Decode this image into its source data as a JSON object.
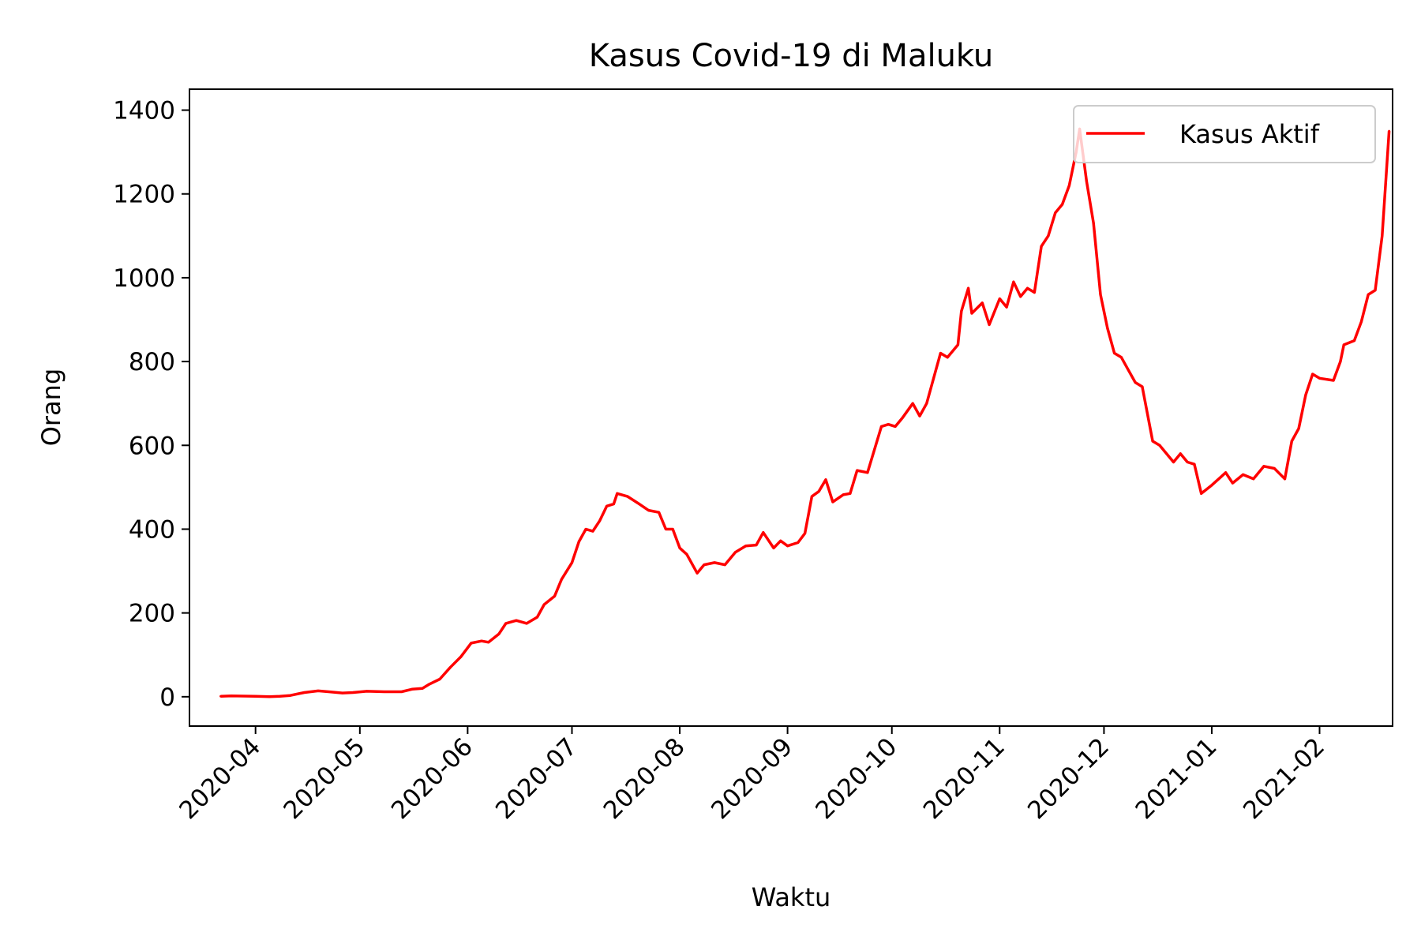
{
  "chart_data": {
    "type": "line",
    "title": "Kasus Covid-19 di Maluku",
    "xlabel": "Waktu",
    "ylabel": "Orang",
    "x_axis": "date",
    "xlim": [
      "2020-03-13",
      "2021-02-22"
    ],
    "ylim": [
      -70,
      1450
    ],
    "xticks": [
      "2020-04-01",
      "2020-05-01",
      "2020-06-01",
      "2020-07-01",
      "2020-08-01",
      "2020-09-01",
      "2020-10-01",
      "2020-11-01",
      "2020-12-01",
      "2021-01-01",
      "2021-02-01"
    ],
    "xtick_labels": [
      "2020-04",
      "2020-05",
      "2020-06",
      "2020-07",
      "2020-08",
      "2020-09",
      "2020-10",
      "2020-11",
      "2020-12",
      "2021-01",
      "2021-02"
    ],
    "yticks": [
      0,
      200,
      400,
      600,
      800,
      1000,
      1200,
      1400
    ],
    "grid": false,
    "legend_position": "upper right",
    "series": [
      {
        "name": "Kasus Aktif",
        "color": "#ff0000",
        "points": [
          [
            "2020-03-22",
            1
          ],
          [
            "2020-03-25",
            2
          ],
          [
            "2020-04-01",
            1
          ],
          [
            "2020-04-05",
            0
          ],
          [
            "2020-04-08",
            1
          ],
          [
            "2020-04-11",
            3
          ],
          [
            "2020-04-15",
            10
          ],
          [
            "2020-04-19",
            14
          ],
          [
            "2020-04-22",
            12
          ],
          [
            "2020-04-26",
            9
          ],
          [
            "2020-04-29",
            10
          ],
          [
            "2020-05-03",
            13
          ],
          [
            "2020-05-08",
            12
          ],
          [
            "2020-05-13",
            12
          ],
          [
            "2020-05-16",
            18
          ],
          [
            "2020-05-19",
            20
          ],
          [
            "2020-05-21",
            30
          ],
          [
            "2020-05-24",
            42
          ],
          [
            "2020-05-27",
            70
          ],
          [
            "2020-05-30",
            95
          ],
          [
            "2020-06-02",
            128
          ],
          [
            "2020-06-05",
            133
          ],
          [
            "2020-06-07",
            130
          ],
          [
            "2020-06-10",
            150
          ],
          [
            "2020-06-12",
            175
          ],
          [
            "2020-06-15",
            182
          ],
          [
            "2020-06-18",
            175
          ],
          [
            "2020-06-21",
            190
          ],
          [
            "2020-06-23",
            220
          ],
          [
            "2020-06-26",
            240
          ],
          [
            "2020-06-28",
            280
          ],
          [
            "2020-07-01",
            320
          ],
          [
            "2020-07-03",
            370
          ],
          [
            "2020-07-05",
            400
          ],
          [
            "2020-07-07",
            395
          ],
          [
            "2020-07-09",
            420
          ],
          [
            "2020-07-11",
            455
          ],
          [
            "2020-07-13",
            460
          ],
          [
            "2020-07-14",
            485
          ],
          [
            "2020-07-17",
            478
          ],
          [
            "2020-07-20",
            462
          ],
          [
            "2020-07-23",
            445
          ],
          [
            "2020-07-26",
            440
          ],
          [
            "2020-07-28",
            400
          ],
          [
            "2020-07-30",
            400
          ],
          [
            "2020-08-01",
            355
          ],
          [
            "2020-08-03",
            340
          ],
          [
            "2020-08-06",
            295
          ],
          [
            "2020-08-08",
            315
          ],
          [
            "2020-08-11",
            320
          ],
          [
            "2020-08-14",
            315
          ],
          [
            "2020-08-17",
            345
          ],
          [
            "2020-08-20",
            360
          ],
          [
            "2020-08-23",
            362
          ],
          [
            "2020-08-25",
            392
          ],
          [
            "2020-08-28",
            355
          ],
          [
            "2020-08-30",
            372
          ],
          [
            "2020-09-01",
            360
          ],
          [
            "2020-09-04",
            368
          ],
          [
            "2020-09-06",
            390
          ],
          [
            "2020-09-08",
            478
          ],
          [
            "2020-09-10",
            490
          ],
          [
            "2020-09-12",
            518
          ],
          [
            "2020-09-14",
            465
          ],
          [
            "2020-09-17",
            482
          ],
          [
            "2020-09-19",
            485
          ],
          [
            "2020-09-21",
            540
          ],
          [
            "2020-09-24",
            535
          ],
          [
            "2020-09-26",
            590
          ],
          [
            "2020-09-28",
            645
          ],
          [
            "2020-09-30",
            650
          ],
          [
            "2020-10-02",
            645
          ],
          [
            "2020-10-04",
            665
          ],
          [
            "2020-10-07",
            700
          ],
          [
            "2020-10-09",
            670
          ],
          [
            "2020-10-11",
            700
          ],
          [
            "2020-10-13",
            760
          ],
          [
            "2020-10-15",
            820
          ],
          [
            "2020-10-17",
            810
          ],
          [
            "2020-10-20",
            840
          ],
          [
            "2020-10-21",
            920
          ],
          [
            "2020-10-23",
            975
          ],
          [
            "2020-10-24",
            915
          ],
          [
            "2020-10-27",
            940
          ],
          [
            "2020-10-29",
            888
          ],
          [
            "2020-11-01",
            950
          ],
          [
            "2020-11-03",
            930
          ],
          [
            "2020-11-05",
            990
          ],
          [
            "2020-11-07",
            955
          ],
          [
            "2020-11-09",
            975
          ],
          [
            "2020-11-11",
            965
          ],
          [
            "2020-11-13",
            1075
          ],
          [
            "2020-11-15",
            1100
          ],
          [
            "2020-11-17",
            1155
          ],
          [
            "2020-11-19",
            1175
          ],
          [
            "2020-11-21",
            1220
          ],
          [
            "2020-11-23",
            1300
          ],
          [
            "2020-11-24",
            1355
          ],
          [
            "2020-11-26",
            1230
          ],
          [
            "2020-11-28",
            1130
          ],
          [
            "2020-11-30",
            960
          ],
          [
            "2020-12-02",
            880
          ],
          [
            "2020-12-04",
            820
          ],
          [
            "2020-12-06",
            810
          ],
          [
            "2020-12-08",
            780
          ],
          [
            "2020-12-10",
            750
          ],
          [
            "2020-12-12",
            740
          ],
          [
            "2020-12-15",
            610
          ],
          [
            "2020-12-17",
            600
          ],
          [
            "2020-12-19",
            580
          ],
          [
            "2020-12-21",
            560
          ],
          [
            "2020-12-23",
            580
          ],
          [
            "2020-12-25",
            560
          ],
          [
            "2020-12-27",
            555
          ],
          [
            "2020-12-29",
            485
          ],
          [
            "2021-01-01",
            505
          ],
          [
            "2021-01-03",
            520
          ],
          [
            "2021-01-05",
            535
          ],
          [
            "2021-01-07",
            510
          ],
          [
            "2021-01-10",
            530
          ],
          [
            "2021-01-13",
            520
          ],
          [
            "2021-01-16",
            550
          ],
          [
            "2021-01-19",
            545
          ],
          [
            "2021-01-22",
            520
          ],
          [
            "2021-01-24",
            610
          ],
          [
            "2021-01-26",
            640
          ],
          [
            "2021-01-28",
            720
          ],
          [
            "2021-01-30",
            770
          ],
          [
            "2021-02-01",
            760
          ],
          [
            "2021-02-05",
            755
          ],
          [
            "2021-02-07",
            800
          ],
          [
            "2021-02-08",
            840
          ],
          [
            "2021-02-11",
            850
          ],
          [
            "2021-02-13",
            895
          ],
          [
            "2021-02-15",
            960
          ],
          [
            "2021-02-17",
            970
          ],
          [
            "2021-02-19",
            1100
          ],
          [
            "2021-02-21",
            1350
          ]
        ]
      }
    ]
  }
}
